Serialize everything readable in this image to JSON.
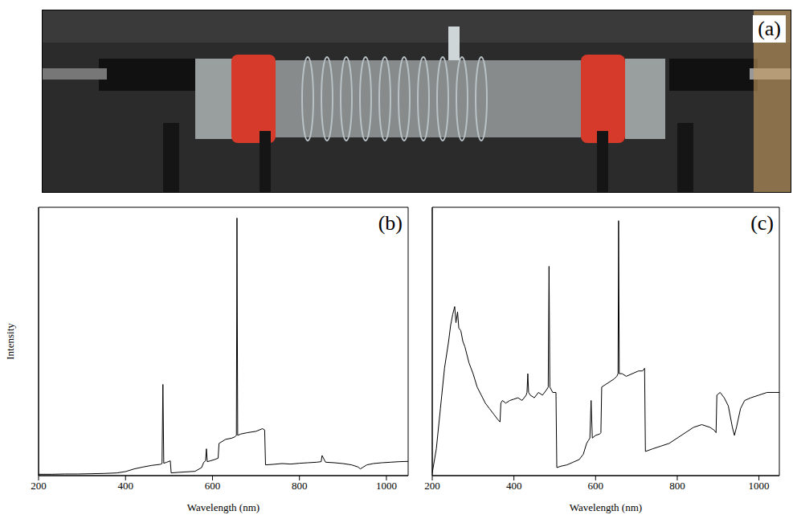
{
  "photo_panel": {
    "label": "(a)"
  },
  "chart_data": [
    {
      "type": "line",
      "title": "(b)",
      "x_label": "Wavelength (nm)",
      "y_label": "Intensity",
      "color": "#000000",
      "grid": false,
      "tick_labels": "x",
      "xlim": [
        200,
        1050
      ],
      "xticks": [
        200,
        400,
        600,
        800,
        1000
      ],
      "ylim": [
        0,
        100
      ],
      "yticks": [],
      "x": [
        200,
        230,
        260,
        290,
        320,
        350,
        380,
        400,
        420,
        440,
        460,
        480,
        484,
        486,
        488,
        495,
        503,
        505,
        520,
        540,
        560,
        575,
        580,
        584,
        586,
        588,
        595,
        605,
        613,
        615,
        630,
        645,
        652,
        655,
        656.3,
        658,
        665,
        680,
        700,
        715,
        720,
        722,
        740,
        760,
        780,
        800,
        820,
        840,
        850,
        852,
        860,
        880,
        900,
        920,
        935,
        940,
        945,
        955,
        970,
        990,
        1010,
        1030,
        1050
      ],
      "values": [
        0.5,
        0.5,
        0.6,
        0.6,
        0.7,
        0.8,
        1,
        1.5,
        2.5,
        3.2,
        3.8,
        4.2,
        4.5,
        34,
        4.6,
        5,
        5.5,
        1,
        1.2,
        1.4,
        1.6,
        3,
        5,
        5.5,
        10,
        5.2,
        5.5,
        6,
        6.5,
        12,
        13.5,
        14,
        14.5,
        15,
        96,
        15,
        15.5,
        16,
        16.5,
        17.5,
        17,
        4,
        4.2,
        4.5,
        4.3,
        4.6,
        4.8,
        5,
        5.2,
        7.5,
        5,
        4.8,
        4.5,
        4,
        3.2,
        2.5,
        3,
        4,
        4.5,
        4.8,
        5,
        5.2,
        5.3
      ]
    },
    {
      "type": "line",
      "title": "(c)",
      "x_label": "Wavelength (nm)",
      "color": "#000000",
      "grid": false,
      "tick_labels": "x",
      "xlim": [
        200,
        1050
      ],
      "xticks": [
        200,
        400,
        600,
        800,
        1000
      ],
      "ylim": [
        0,
        100
      ],
      "yticks": [],
      "x": [
        200,
        210,
        220,
        230,
        240,
        245,
        250,
        255,
        258,
        262,
        265,
        270,
        275,
        280,
        290,
        300,
        310,
        320,
        330,
        340,
        350,
        360,
        366,
        368,
        372,
        380,
        390,
        400,
        410,
        420,
        430,
        432,
        434,
        436,
        440,
        450,
        460,
        470,
        480,
        484,
        486,
        488,
        495,
        503,
        505,
        515,
        530,
        545,
        560,
        570,
        578,
        582,
        586,
        589,
        592,
        600,
        610,
        613,
        615,
        625,
        635,
        645,
        652,
        655,
        656.3,
        658,
        665,
        675,
        690,
        705,
        715,
        720,
        722,
        740,
        760,
        780,
        800,
        820,
        840,
        860,
        880,
        890,
        895,
        897,
        905,
        915,
        925,
        935,
        940,
        945,
        955,
        965,
        980,
        1000,
        1020,
        1040,
        1050
      ],
      "values": [
        1,
        10,
        25,
        40,
        50,
        56,
        60,
        63,
        57,
        61,
        55,
        54,
        50,
        48,
        42,
        38,
        33,
        30,
        27,
        25,
        23,
        21,
        20,
        27,
        28,
        27,
        28,
        28.5,
        29,
        28,
        30,
        31,
        38,
        31,
        30,
        29,
        31,
        30,
        32,
        33,
        78,
        33,
        31,
        31,
        3,
        3.5,
        4,
        5,
        6,
        8,
        12,
        13,
        14,
        28,
        14,
        15,
        15.5,
        16,
        33,
        34,
        35,
        36,
        37,
        38,
        95,
        38,
        38,
        37,
        38,
        39,
        39,
        40,
        9,
        10,
        11,
        12,
        14,
        16,
        18,
        19,
        18,
        17,
        16,
        30,
        31,
        29,
        26,
        18,
        15,
        18,
        25,
        28,
        29,
        30,
        31,
        31,
        31
      ]
    }
  ]
}
